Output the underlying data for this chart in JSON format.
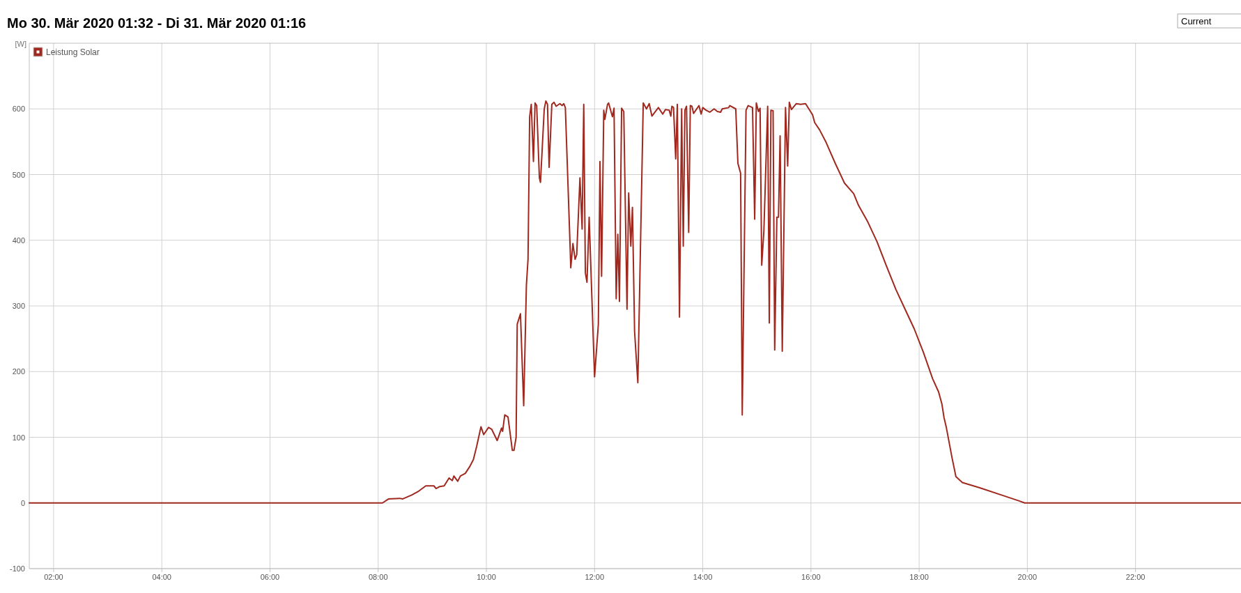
{
  "chart_data": {
    "type": "line",
    "title": "Mo 30. Mär 2020 01:32 - Di 31. Mär 2020 01:16",
    "ylabel": "[W]",
    "annotations": [
      "Current"
    ],
    "xlim": [
      1.55,
      23.95
    ],
    "xticks": [
      {
        "value": 2,
        "label": "02:00"
      },
      {
        "value": 4,
        "label": "04:00"
      },
      {
        "value": 6,
        "label": "06:00"
      },
      {
        "value": 8,
        "label": "08:00"
      },
      {
        "value": 10,
        "label": "10:00"
      },
      {
        "value": 12,
        "label": "12:00"
      },
      {
        "value": 14,
        "label": "14:00"
      },
      {
        "value": 16,
        "label": "16:00"
      },
      {
        "value": 18,
        "label": "18:00"
      },
      {
        "value": 20,
        "label": "20:00"
      },
      {
        "value": 22,
        "label": "22:00"
      }
    ],
    "ylim": [
      -100,
      700
    ],
    "yticks": [
      -100,
      0,
      100,
      200,
      300,
      400,
      500,
      600
    ],
    "grid": true,
    "legend": "top left",
    "marker": "none",
    "line_style": "solid",
    "series": [
      {
        "name": "Leistung Solar",
        "color": "#a0281e",
        "x": [
          1.55,
          8.08,
          8.19,
          8.4,
          8.45,
          8.62,
          8.75,
          8.88,
          9.03,
          9.07,
          9.14,
          9.22,
          9.31,
          9.37,
          9.4,
          9.47,
          9.52,
          9.61,
          9.69,
          9.76,
          9.82,
          9.9,
          9.95,
          10.04,
          10.1,
          10.2,
          10.28,
          10.3,
          10.34,
          10.4,
          10.48,
          10.51,
          10.55,
          10.57,
          10.63,
          10.69,
          10.74,
          10.77,
          10.8,
          10.83,
          10.87,
          10.9,
          10.93,
          10.98,
          11.0,
          11.07,
          11.1,
          11.13,
          11.16,
          11.21,
          11.25,
          11.29,
          11.36,
          11.4,
          11.43,
          11.46,
          11.55,
          11.56,
          11.6,
          11.64,
          11.67,
          11.73,
          11.77,
          11.8,
          11.83,
          11.86,
          11.9,
          12.0,
          12.07,
          12.1,
          12.13,
          12.17,
          12.19,
          12.24,
          12.26,
          12.33,
          12.36,
          12.4,
          12.43,
          12.46,
          12.5,
          12.54,
          12.6,
          12.63,
          12.67,
          12.7,
          12.74,
          12.8,
          12.9,
          12.96,
          13.01,
          13.06,
          13.18,
          13.26,
          13.31,
          13.38,
          13.41,
          13.43,
          13.46,
          13.5,
          13.53,
          13.57,
          13.61,
          13.64,
          13.67,
          13.7,
          13.74,
          13.77,
          13.8,
          13.83,
          13.93,
          13.97,
          14.0,
          14.06,
          14.13,
          14.21,
          14.27,
          14.33,
          14.36,
          14.48,
          14.5,
          14.61,
          14.65,
          14.7,
          14.73,
          14.8,
          14.84,
          14.92,
          14.96,
          14.99,
          15.03,
          15.06,
          15.09,
          15.13,
          15.2,
          15.23,
          15.26,
          15.3,
          15.33,
          15.37,
          15.4,
          15.43,
          15.47,
          15.53,
          15.57,
          15.6,
          15.64,
          15.73,
          15.81,
          15.9,
          16.03,
          16.07,
          16.16,
          16.28,
          16.45,
          16.62,
          16.79,
          16.88,
          17.05,
          17.22,
          17.39,
          17.57,
          17.74,
          17.91,
          18.08,
          18.25,
          18.36,
          18.42,
          18.46,
          18.5,
          18.61,
          18.68,
          18.8,
          19.12,
          19.56,
          19.85,
          19.95,
          23.95
        ],
        "values": [
          0,
          0,
          6,
          7,
          6,
          12,
          18,
          26,
          26,
          22,
          25,
          26,
          38,
          34,
          41,
          33,
          41,
          45,
          55,
          66,
          86,
          116,
          104,
          115,
          112,
          95,
          114,
          109,
          134,
          131,
          80,
          80,
          100,
          272,
          288,
          148,
          332,
          371,
          588,
          607,
          520,
          609,
          605,
          495,
          488,
          600,
          612,
          607,
          511,
          607,
          610,
          604,
          608,
          605,
          608,
          602,
          385,
          358,
          395,
          371,
          378,
          495,
          417,
          607,
          350,
          336,
          435,
          192,
          272,
          520,
          345,
          598,
          584,
          607,
          609,
          588,
          601,
          311,
          409,
          307,
          601,
          596,
          295,
          472,
          391,
          450,
          261,
          183,
          609,
          600,
          608,
          589,
          602,
          592,
          599,
          598,
          589,
          604,
          602,
          524,
          607,
          283,
          600,
          391,
          598,
          604,
          412,
          605,
          604,
          593,
          605,
          592,
          602,
          598,
          595,
          600,
          596,
          595,
          600,
          602,
          605,
          600,
          517,
          502,
          134,
          598,
          605,
          602,
          432,
          609,
          596,
          601,
          362,
          414,
          604,
          274,
          598,
          597,
          233,
          435,
          435,
          559,
          231,
          602,
          513,
          610,
          599,
          608,
          607,
          608,
          591,
          579,
          568,
          549,
          517,
          487,
          471,
          453,
          428,
          398,
          362,
          325,
          295,
          265,
          229,
          189,
          169,
          151,
          130,
          116,
          68,
          40,
          31,
          23,
          11,
          3,
          0,
          0
        ]
      }
    ]
  }
}
